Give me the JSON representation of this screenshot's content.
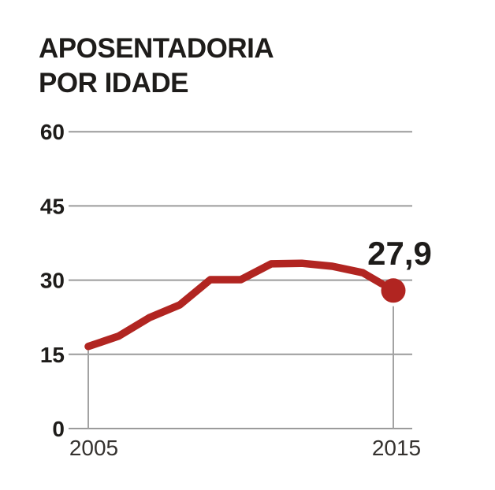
{
  "title": {
    "line1": "APOSENTADORIA",
    "line2": "POR IDADE"
  },
  "chart_data": {
    "type": "line",
    "title": "APOSENTADORIA POR IDADE",
    "x": [
      2005,
      2006,
      2007,
      2008,
      2009,
      2010,
      2011,
      2012,
      2013,
      2014,
      2015
    ],
    "series": [
      {
        "name": "aposentadoria-por-idade",
        "values": [
          16.6,
          18.7,
          22.4,
          25.0,
          30.1,
          30.1,
          33.3,
          33.4,
          32.8,
          31.5,
          27.9
        ]
      }
    ],
    "y_ticks": [
      60,
      45,
      30,
      15,
      0
    ],
    "ylim": [
      0,
      60
    ],
    "x_tick_labels": [
      "2005",
      "2015"
    ],
    "x_tick_years": [
      2005,
      2015
    ],
    "annotation": {
      "text": "27,9",
      "year": 2015,
      "value": 27.9
    },
    "grid": "horizontal",
    "legend": "none",
    "endpoint_dot": true
  },
  "colors": {
    "line": "#b12521",
    "dot": "#b12521",
    "heading_text": "#1e1c1a",
    "axis_text": "#35322f",
    "grid": "#9b9b9b",
    "background": "#ffffff"
  }
}
